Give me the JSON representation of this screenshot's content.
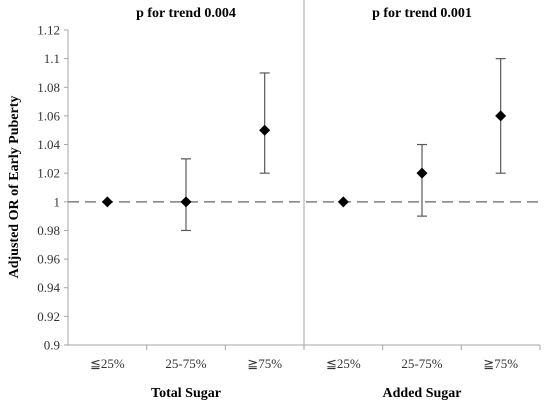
{
  "chart_data": {
    "type": "scatter",
    "ylabel": "Adjusted OR of Early Puberty",
    "ylim": [
      0.9,
      1.12
    ],
    "yticks": [
      "0.9",
      "0.92",
      "0.94",
      "0.96",
      "0.98",
      "1",
      "1.02",
      "1.04",
      "1.06",
      "1.08",
      "1.1",
      "1.12"
    ],
    "reference_line": 1,
    "panels": [
      {
        "title": "p for trend 0.004",
        "group_label": "Total Sugar",
        "categories": [
          "≦25%",
          "25-75%",
          "≧75%"
        ],
        "values": [
          1.0,
          1.0,
          1.05
        ],
        "ci_low": [
          1.0,
          0.98,
          1.02
        ],
        "ci_high": [
          1.0,
          1.03,
          1.09
        ]
      },
      {
        "title": "p for trend 0.001",
        "group_label": "Added Sugar",
        "categories": [
          "≦25%",
          "25-75%",
          "≧75%"
        ],
        "values": [
          1.0,
          1.02,
          1.06
        ],
        "ci_low": [
          1.0,
          0.99,
          1.02
        ],
        "ci_high": [
          1.0,
          1.04,
          1.1
        ]
      }
    ],
    "grid": false,
    "legend": "none"
  },
  "colors": {
    "marker": "#000000",
    "errorbar": "#595959",
    "axis": "#a6a6a6",
    "reference": "#7f7f7f"
  }
}
